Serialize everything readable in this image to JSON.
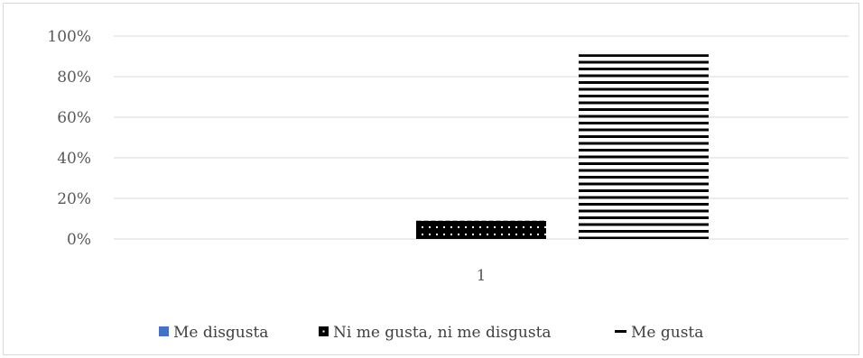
{
  "chart_data": {
    "type": "bar",
    "categories": [
      "1"
    ],
    "series": [
      {
        "name": "Me disgusta",
        "values": [
          0
        ],
        "color": "#4472c4",
        "pattern": "solid"
      },
      {
        "name": "Ni me gusta, ni me disgusta",
        "values": [
          0.09
        ],
        "color": "#000000",
        "pattern": "dotted"
      },
      {
        "name": "Me gusta",
        "values": [
          0.91
        ],
        "color": "#000000",
        "pattern": "horizontal-lines"
      }
    ],
    "ylim": [
      0,
      1
    ],
    "yticks": [
      "0%",
      "20%",
      "40%",
      "60%",
      "80%",
      "100%"
    ],
    "grid": true,
    "legend_position": "bottom",
    "title": "",
    "xlabel": "",
    "ylabel": ""
  }
}
